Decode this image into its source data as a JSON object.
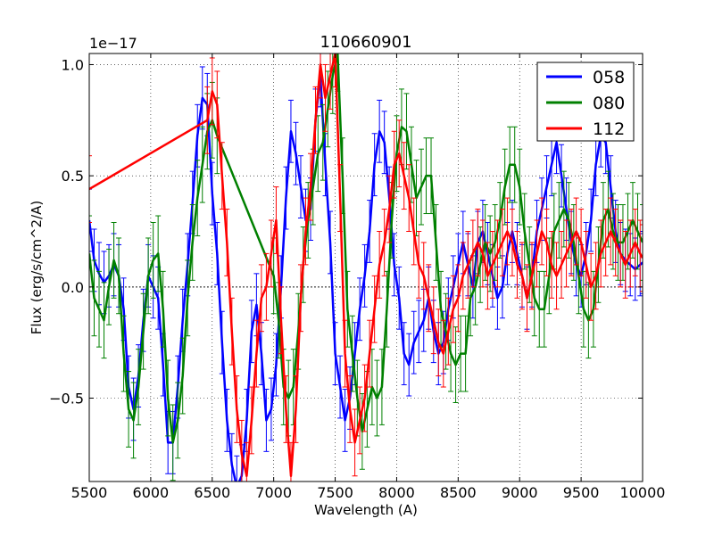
{
  "chart_data": {
    "type": "line",
    "title": "110660901",
    "xlabel": "Wavelength (A)",
    "ylabel": "Flux (erg/s/cm^2/A)",
    "offset_label": "1e−17",
    "xlim": [
      5500,
      10000
    ],
    "ylim": [
      -0.875,
      1.05
    ],
    "xticks": [
      5500,
      6000,
      6500,
      7000,
      7500,
      8000,
      8500,
      9000,
      9500,
      10000
    ],
    "xtick_labels": [
      "5500",
      "6000",
      "6500",
      "7000",
      "7500",
      "8000",
      "8500",
      "9000",
      "9500",
      "10000"
    ],
    "yticks": [
      -0.5,
      0.0,
      0.5,
      1.0
    ],
    "ytick_labels": [
      "−0.5",
      "0.0",
      "0.5",
      "1.0"
    ],
    "grid": true,
    "legend_position": "top-right",
    "zero_line": 0.0,
    "series": [
      {
        "name": "058",
        "color": "#0000ff",
        "x": [
          5500,
          5540,
          5580,
          5620,
          5660,
          5700,
          5740,
          5780,
          5820,
          5860,
          5900,
          5940,
          5980,
          6020,
          6060,
          6100,
          6140,
          6180,
          6220,
          6260,
          6300,
          6340,
          6380,
          6420,
          6460,
          6500,
          6540,
          6580,
          6620,
          6660,
          6700,
          6740,
          6780,
          6820,
          6860,
          6900,
          6940,
          6980,
          7020,
          7060,
          7100,
          7140,
          7180,
          7220,
          7260,
          7300,
          7340,
          7380,
          7420,
          7460,
          7500,
          7540,
          7580,
          7620,
          7660,
          7700,
          7740,
          7780,
          7820,
          7860,
          7900,
          7940,
          7980,
          8020,
          8060,
          8100,
          8140,
          8180,
          8220,
          8260,
          8300,
          8340,
          8380,
          8420,
          8460,
          8500,
          8540,
          8580,
          8620,
          8660,
          8700,
          8740,
          8780,
          8820,
          8860,
          8900,
          8940,
          8980,
          9020,
          9060,
          9100,
          9140,
          9180,
          9220,
          9260,
          9300,
          9340,
          9380,
          9420,
          9460,
          9500,
          9540,
          9580,
          9620,
          9660,
          9700,
          9740,
          9780,
          9820,
          9860,
          9900,
          9940,
          9980,
          10000
        ],
        "y": [
          0.3,
          0.12,
          0.06,
          0.02,
          0.05,
          0.1,
          0.05,
          -0.1,
          -0.45,
          -0.55,
          -0.4,
          -0.15,
          0.05,
          0.0,
          -0.05,
          -0.35,
          -0.7,
          -0.7,
          -0.45,
          -0.15,
          0.1,
          0.38,
          0.68,
          0.85,
          0.82,
          0.42,
          0.15,
          -0.25,
          -0.6,
          -0.8,
          -0.9,
          -0.85,
          -0.6,
          -0.2,
          -0.08,
          -0.3,
          -0.6,
          -0.55,
          -0.35,
          0.0,
          0.4,
          0.7,
          0.6,
          0.45,
          0.3,
          0.35,
          0.75,
          0.95,
          0.55,
          0.2,
          -0.3,
          -0.45,
          -0.6,
          -0.5,
          -0.3,
          -0.1,
          0.05,
          0.25,
          0.55,
          0.7,
          0.65,
          0.4,
          0.1,
          -0.05,
          -0.3,
          -0.35,
          -0.25,
          -0.2,
          -0.15,
          -0.05,
          -0.2,
          -0.3,
          -0.25,
          -0.1,
          0.0,
          0.1,
          0.2,
          0.1,
          0.0,
          0.2,
          0.25,
          0.15,
          0.05,
          -0.05,
          0.0,
          0.15,
          0.25,
          0.15,
          0.05,
          -0.05,
          0.05,
          0.25,
          0.35,
          0.45,
          0.55,
          0.65,
          0.5,
          0.35,
          0.2,
          0.1,
          0.05,
          0.15,
          0.3,
          0.55,
          0.68,
          0.65,
          0.45,
          0.25,
          0.15,
          0.12,
          0.1,
          0.08,
          0.1,
          0.11
        ],
        "err": 0.14
      },
      {
        "name": "080",
        "color": "#008000",
        "x": [
          5500,
          5540,
          5580,
          5620,
          5660,
          5700,
          5740,
          5780,
          5820,
          5860,
          5900,
          5940,
          5980,
          6020,
          6060,
          6100,
          6140,
          6180,
          6220,
          6260,
          6300,
          6340,
          6380,
          6420,
          6460,
          6500,
          6540,
          7000,
          7040,
          7080,
          7120,
          7160,
          7200,
          7240,
          7280,
          7320,
          7360,
          7400,
          7440,
          7480,
          7520,
          7560,
          7600,
          7640,
          7680,
          7720,
          7760,
          7800,
          7840,
          7880,
          7920,
          7960,
          8000,
          8040,
          8080,
          8120,
          8160,
          8200,
          8240,
          8280,
          8320,
          8360,
          8400,
          8440,
          8480,
          8520,
          8560,
          8600,
          8640,
          8680,
          8720,
          8760,
          8800,
          8840,
          8880,
          8920,
          8960,
          9000,
          9040,
          9080,
          9120,
          9160,
          9200,
          9240,
          9280,
          9320,
          9360,
          9400,
          9440,
          9480,
          9520,
          9560,
          9600,
          9640,
          9680,
          9720,
          9760,
          9800,
          9840,
          9880,
          9920,
          9960,
          10000
        ],
        "y": [
          0.15,
          -0.05,
          -0.1,
          -0.15,
          0.0,
          0.12,
          0.05,
          -0.3,
          -0.55,
          -0.6,
          -0.45,
          -0.2,
          0.05,
          0.12,
          0.15,
          -0.1,
          -0.5,
          -0.7,
          -0.6,
          -0.4,
          -0.05,
          0.2,
          0.4,
          0.55,
          0.7,
          0.75,
          0.68,
          0.05,
          -0.15,
          -0.45,
          -0.5,
          -0.45,
          -0.2,
          0.1,
          0.3,
          0.45,
          0.6,
          0.65,
          0.8,
          0.95,
          1.05,
          0.5,
          -0.1,
          -0.3,
          -0.5,
          -0.65,
          -0.55,
          -0.45,
          -0.5,
          -0.45,
          -0.1,
          0.3,
          0.6,
          0.72,
          0.7,
          0.55,
          0.4,
          0.45,
          0.5,
          0.5,
          0.2,
          -0.1,
          -0.2,
          -0.3,
          -0.35,
          -0.3,
          -0.3,
          -0.05,
          0.0,
          0.1,
          0.2,
          0.15,
          0.2,
          0.3,
          0.45,
          0.55,
          0.55,
          0.45,
          0.25,
          0.1,
          -0.05,
          -0.1,
          -0.1,
          0.05,
          0.25,
          0.3,
          0.35,
          0.3,
          0.2,
          0.05,
          -0.1,
          -0.15,
          -0.1,
          0.1,
          0.3,
          0.35,
          0.25,
          0.2,
          0.2,
          0.25,
          0.3,
          0.25,
          0.2
        ],
        "err": 0.17
      },
      {
        "name": "112",
        "color": "#ff0000",
        "x": [
          5500,
          6460,
          6500,
          6540,
          6580,
          6620,
          6660,
          6700,
          6740,
          6780,
          6820,
          6860,
          6900,
          6940,
          6980,
          7020,
          7060,
          7100,
          7140,
          7180,
          7220,
          7260,
          7300,
          7340,
          7380,
          7420,
          7460,
          7500,
          7540,
          7580,
          7620,
          7660,
          7700,
          7740,
          7780,
          7820,
          7860,
          7900,
          7940,
          7980,
          8020,
          8060,
          8100,
          8140,
          8180,
          8220,
          8260,
          8300,
          8340,
          8380,
          8420,
          8460,
          8500,
          8540,
          8580,
          8620,
          8660,
          8700,
          8740,
          8780,
          8820,
          8860,
          8900,
          8940,
          8980,
          9020,
          9060,
          9100,
          9140,
          9180,
          9220,
          9260,
          9300,
          9340,
          9380,
          9420,
          9460,
          9500,
          9540,
          9580,
          9620,
          9660,
          9700,
          9740,
          9780,
          9820,
          9860,
          9900,
          9940,
          9980,
          10000
        ],
        "y": [
          0.44,
          0.75,
          0.88,
          0.82,
          0.5,
          0.2,
          -0.2,
          -0.55,
          -0.75,
          -0.85,
          -0.6,
          -0.3,
          -0.05,
          0.0,
          0.15,
          0.3,
          -0.15,
          -0.55,
          -0.85,
          -0.55,
          -0.05,
          0.25,
          0.45,
          0.75,
          1.0,
          0.85,
          0.95,
          1.05,
          0.4,
          -0.3,
          -0.55,
          -0.7,
          -0.6,
          -0.5,
          -0.3,
          -0.1,
          0.1,
          0.2,
          0.35,
          0.55,
          0.6,
          0.5,
          0.4,
          0.25,
          0.1,
          0.05,
          -0.05,
          -0.15,
          -0.25,
          -0.3,
          -0.2,
          -0.1,
          -0.05,
          0.05,
          0.1,
          0.15,
          0.2,
          0.15,
          0.05,
          0.1,
          0.15,
          0.2,
          0.25,
          0.2,
          0.1,
          0.05,
          -0.05,
          0.05,
          0.15,
          0.25,
          0.2,
          0.1,
          0.05,
          0.1,
          0.15,
          0.2,
          0.25,
          0.2,
          0.1,
          0.0,
          0.05,
          0.15,
          0.2,
          0.25,
          0.2,
          0.15,
          0.1,
          0.15,
          0.2,
          0.15,
          0.13
        ],
        "err": 0.15
      }
    ]
  }
}
